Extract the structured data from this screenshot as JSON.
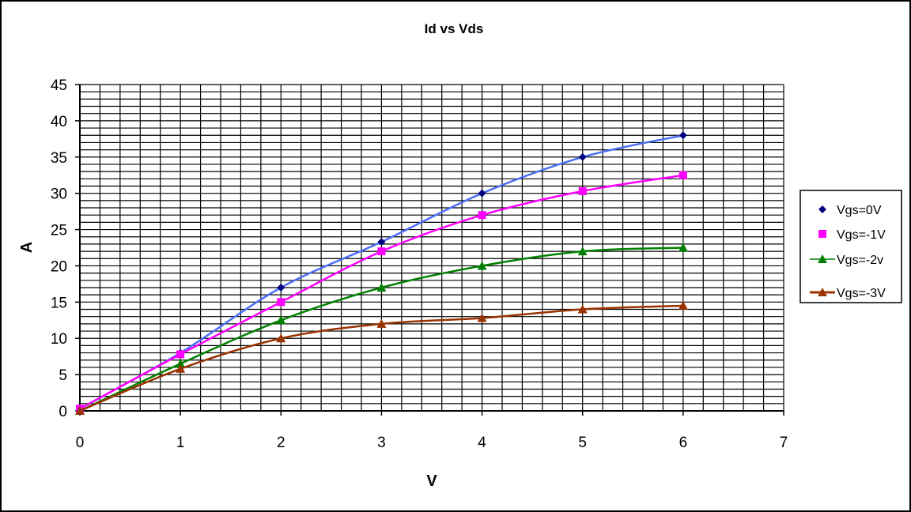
{
  "chart_data": {
    "type": "line",
    "title": "Id vs Vds",
    "xlabel": "V",
    "ylabel": "A",
    "xlim": [
      0,
      7
    ],
    "ylim": [
      0,
      45
    ],
    "xticks": [
      0,
      1,
      2,
      3,
      4,
      5,
      6,
      7
    ],
    "yticks": [
      0,
      5,
      10,
      15,
      20,
      25,
      30,
      35,
      40,
      45
    ],
    "grid": true,
    "legend_position": "right",
    "series": [
      {
        "name": "Vgs=0V",
        "color": "#000080",
        "line_color": "#4a6ef5",
        "marker": "diamond",
        "x": [
          0,
          1,
          2,
          3,
          4,
          5,
          6
        ],
        "y": [
          0.3,
          8,
          17,
          23.3,
          30,
          35,
          38
        ]
      },
      {
        "name": "Vgs=-1V",
        "color": "#ff00ff",
        "line_color": "#ff00ff",
        "marker": "square",
        "x": [
          0,
          1,
          2,
          3,
          4,
          5,
          6
        ],
        "y": [
          0.3,
          7.8,
          15,
          22,
          27,
          30.3,
          32.5
        ]
      },
      {
        "name": "Vgs=-2v",
        "color": "#008000",
        "line_color": "#008000",
        "marker": "triangle",
        "x": [
          0,
          1,
          2,
          3,
          4,
          5,
          6
        ],
        "y": [
          0,
          6.5,
          12.5,
          17,
          20,
          22,
          22.5
        ]
      },
      {
        "name": "Vgs=-3V",
        "color": "#993300",
        "line_color": "#993300",
        "marker": "triangle",
        "x": [
          0,
          1,
          2,
          3,
          4,
          5,
          6
        ],
        "y": [
          0,
          5.8,
          10,
          12,
          12.8,
          14,
          14.5
        ]
      }
    ]
  }
}
